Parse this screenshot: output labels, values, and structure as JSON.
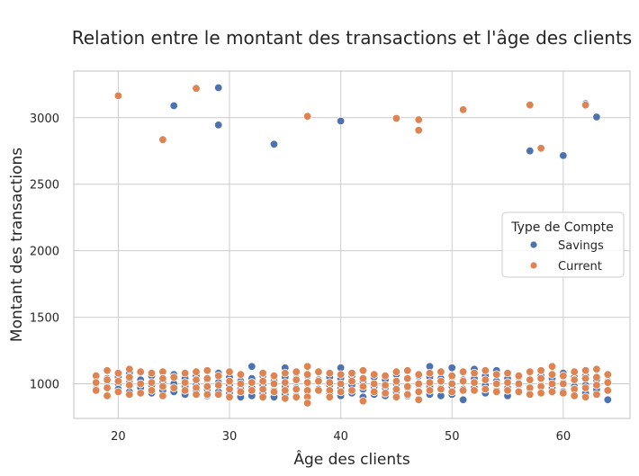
{
  "chart_data": {
    "type": "scatter",
    "title": "Relation entre le montant des transactions et l'âge des clients",
    "xlabel": "Âge des clients",
    "ylabel": "Montant des transactions",
    "xlim": [
      16,
      66
    ],
    "ylim": [
      740,
      3350
    ],
    "xticks": [
      20,
      30,
      40,
      50,
      60
    ],
    "yticks": [
      1000,
      1500,
      2000,
      2500,
      3000
    ],
    "grid": true,
    "legend": {
      "title": "Type de Compte",
      "placement": "center-right"
    },
    "series": [
      {
        "name": "Savings",
        "color": "#4c72b0",
        "points": [
          [
            18,
            1000
          ],
          [
            18,
            960
          ],
          [
            19,
            1040
          ],
          [
            19,
            980
          ],
          [
            20,
            1050
          ],
          [
            20,
            1000
          ],
          [
            20,
            960
          ],
          [
            21,
            1080
          ],
          [
            21,
            1010
          ],
          [
            21,
            940
          ],
          [
            22,
            1030
          ],
          [
            22,
            970
          ],
          [
            23,
            1060
          ],
          [
            23,
            990
          ],
          [
            23,
            930
          ],
          [
            24,
            1020
          ],
          [
            24,
            950
          ],
          [
            25,
            1070
          ],
          [
            25,
            1000
          ],
          [
            25,
            940
          ],
          [
            26,
            1040
          ],
          [
            26,
            980
          ],
          [
            26,
            920
          ],
          [
            27,
            1060
          ],
          [
            27,
            990
          ],
          [
            27,
            950
          ],
          [
            28,
            1030
          ],
          [
            28,
            960
          ],
          [
            28,
            910
          ],
          [
            29,
            1080
          ],
          [
            29,
            1010
          ],
          [
            29,
            940
          ],
          [
            30,
            1050
          ],
          [
            30,
            990
          ],
          [
            30,
            930
          ],
          [
            31,
            1020
          ],
          [
            31,
            960
          ],
          [
            31,
            900
          ],
          [
            32,
            1130
          ],
          [
            32,
            1040
          ],
          [
            32,
            970
          ],
          [
            32,
            910
          ],
          [
            33,
            1060
          ],
          [
            33,
            990
          ],
          [
            33,
            930
          ],
          [
            34,
            1020
          ],
          [
            34,
            950
          ],
          [
            34,
            900
          ],
          [
            35,
            1120
          ],
          [
            35,
            1050
          ],
          [
            35,
            980
          ],
          [
            35,
            920
          ],
          [
            36,
            1040
          ],
          [
            36,
            970
          ],
          [
            36,
            910
          ],
          [
            37,
            1060
          ],
          [
            37,
            1000
          ],
          [
            37,
            940
          ],
          [
            38,
            1030
          ],
          [
            38,
            960
          ],
          [
            39,
            1050
          ],
          [
            39,
            990
          ],
          [
            39,
            930
          ],
          [
            40,
            1120
          ],
          [
            40,
            1040
          ],
          [
            40,
            970
          ],
          [
            40,
            910
          ],
          [
            41,
            1060
          ],
          [
            41,
            990
          ],
          [
            41,
            930
          ],
          [
            42,
            1020
          ],
          [
            42,
            960
          ],
          [
            42,
            900
          ],
          [
            43,
            1050
          ],
          [
            43,
            980
          ],
          [
            43,
            920
          ],
          [
            44,
            1030
          ],
          [
            44,
            970
          ],
          [
            44,
            910
          ],
          [
            45,
            1070
          ],
          [
            45,
            1000
          ],
          [
            45,
            940
          ],
          [
            46,
            1040
          ],
          [
            46,
            970
          ],
          [
            46,
            910
          ],
          [
            47,
            1060
          ],
          [
            47,
            990
          ],
          [
            48,
            1130
          ],
          [
            48,
            1050
          ],
          [
            48,
            980
          ],
          [
            48,
            920
          ],
          [
            49,
            1040
          ],
          [
            49,
            970
          ],
          [
            49,
            910
          ],
          [
            50,
            1120
          ],
          [
            50,
            1050
          ],
          [
            50,
            980
          ],
          [
            50,
            920
          ],
          [
            51,
            1030
          ],
          [
            51,
            960
          ],
          [
            51,
            880
          ],
          [
            52,
            1110
          ],
          [
            52,
            1040
          ],
          [
            52,
            970
          ],
          [
            53,
            1060
          ],
          [
            53,
            990
          ],
          [
            53,
            930
          ],
          [
            54,
            1100
          ],
          [
            54,
            1020
          ],
          [
            54,
            950
          ],
          [
            55,
            1040
          ],
          [
            55,
            970
          ],
          [
            55,
            910
          ],
          [
            56,
            1050
          ],
          [
            56,
            990
          ],
          [
            57,
            1030
          ],
          [
            57,
            960
          ],
          [
            58,
            1060
          ],
          [
            58,
            990
          ],
          [
            58,
            930
          ],
          [
            59,
            1040
          ],
          [
            59,
            970
          ],
          [
            60,
            1080
          ],
          [
            60,
            1010
          ],
          [
            60,
            940
          ],
          [
            61,
            1050
          ],
          [
            61,
            980
          ],
          [
            62,
            1060
          ],
          [
            62,
            990
          ],
          [
            62,
            930
          ],
          [
            63,
            1030
          ],
          [
            63,
            960
          ],
          [
            64,
            1020
          ],
          [
            64,
            950
          ],
          [
            64,
            880
          ],
          [
            25,
            3090
          ],
          [
            29,
            3225
          ],
          [
            29,
            2945
          ],
          [
            34,
            2800
          ],
          [
            40,
            2975
          ],
          [
            57,
            2750
          ],
          [
            60,
            2715
          ],
          [
            62,
            3105
          ],
          [
            63,
            3005
          ]
        ]
      },
      {
        "name": "Current",
        "color": "#dd8452",
        "points": [
          [
            18,
            1060
          ],
          [
            18,
            1010
          ],
          [
            18,
            950
          ],
          [
            19,
            1100
          ],
          [
            19,
            1030
          ],
          [
            19,
            970
          ],
          [
            19,
            910
          ],
          [
            20,
            1080
          ],
          [
            20,
            1020
          ],
          [
            20,
            940
          ],
          [
            21,
            1110
          ],
          [
            21,
            1050
          ],
          [
            21,
            990
          ],
          [
            21,
            920
          ],
          [
            22,
            1090
          ],
          [
            22,
            1000
          ],
          [
            22,
            930
          ],
          [
            23,
            1080
          ],
          [
            23,
            1010
          ],
          [
            23,
            950
          ],
          [
            24,
            1090
          ],
          [
            24,
            1040
          ],
          [
            24,
            980
          ],
          [
            24,
            910
          ],
          [
            25,
            1050
          ],
          [
            25,
            970
          ],
          [
            26,
            1080
          ],
          [
            26,
            1010
          ],
          [
            26,
            950
          ],
          [
            27,
            1090
          ],
          [
            27,
            1030
          ],
          [
            27,
            970
          ],
          [
            27,
            920
          ],
          [
            28,
            1100
          ],
          [
            28,
            1040
          ],
          [
            28,
            980
          ],
          [
            28,
            920
          ],
          [
            29,
            1060
          ],
          [
            29,
            990
          ],
          [
            29,
            920
          ],
          [
            30,
            1090
          ],
          [
            30,
            1020
          ],
          [
            30,
            960
          ],
          [
            30,
            900
          ],
          [
            31,
            1070
          ],
          [
            31,
            1000
          ],
          [
            31,
            940
          ],
          [
            32,
            1010
          ],
          [
            32,
            950
          ],
          [
            33,
            1080
          ],
          [
            33,
            1020
          ],
          [
            33,
            960
          ],
          [
            33,
            900
          ],
          [
            34,
            1060
          ],
          [
            34,
            1000
          ],
          [
            34,
            940
          ],
          [
            35,
            1080
          ],
          [
            35,
            1010
          ],
          [
            35,
            950
          ],
          [
            35,
            890
          ],
          [
            36,
            1090
          ],
          [
            36,
            1030
          ],
          [
            36,
            960
          ],
          [
            36,
            900
          ],
          [
            37,
            1130
          ],
          [
            37,
            1070
          ],
          [
            37,
            1010
          ],
          [
            37,
            950
          ],
          [
            37,
            900
          ],
          [
            37,
            855
          ],
          [
            38,
            1090
          ],
          [
            38,
            1020
          ],
          [
            38,
            950
          ],
          [
            39,
            1080
          ],
          [
            39,
            1010
          ],
          [
            39,
            950
          ],
          [
            39,
            900
          ],
          [
            40,
            1070
          ],
          [
            40,
            1000
          ],
          [
            40,
            940
          ],
          [
            41,
            1080
          ],
          [
            41,
            1020
          ],
          [
            41,
            950
          ],
          [
            42,
            1100
          ],
          [
            42,
            1040
          ],
          [
            42,
            980
          ],
          [
            42,
            870
          ],
          [
            43,
            1070
          ],
          [
            43,
            1000
          ],
          [
            43,
            940
          ],
          [
            44,
            1060
          ],
          [
            44,
            990
          ],
          [
            44,
            930
          ],
          [
            45,
            1090
          ],
          [
            45,
            1020
          ],
          [
            45,
            960
          ],
          [
            45,
            900
          ],
          [
            46,
            1100
          ],
          [
            46,
            1040
          ],
          [
            46,
            980
          ],
          [
            46,
            920
          ],
          [
            47,
            1070
          ],
          [
            47,
            1000
          ],
          [
            47,
            940
          ],
          [
            47,
            880
          ],
          [
            48,
            1080
          ],
          [
            48,
            1010
          ],
          [
            48,
            950
          ],
          [
            49,
            1090
          ],
          [
            49,
            1020
          ],
          [
            49,
            960
          ],
          [
            50,
            1060
          ],
          [
            50,
            1000
          ],
          [
            50,
            940
          ],
          [
            51,
            1090
          ],
          [
            51,
            1020
          ],
          [
            51,
            950
          ],
          [
            52,
            1080
          ],
          [
            52,
            1010
          ],
          [
            52,
            950
          ],
          [
            53,
            1100
          ],
          [
            53,
            1030
          ],
          [
            53,
            960
          ],
          [
            54,
            1070
          ],
          [
            54,
            1000
          ],
          [
            54,
            940
          ],
          [
            55,
            1080
          ],
          [
            55,
            1010
          ],
          [
            55,
            950
          ],
          [
            56,
            1060
          ],
          [
            56,
            1000
          ],
          [
            56,
            940
          ],
          [
            57,
            1090
          ],
          [
            57,
            1030
          ],
          [
            57,
            970
          ],
          [
            57,
            920
          ],
          [
            58,
            1100
          ],
          [
            58,
            1040
          ],
          [
            58,
            980
          ],
          [
            58,
            930
          ],
          [
            59,
            1130
          ],
          [
            59,
            1070
          ],
          [
            59,
            1000
          ],
          [
            59,
            940
          ],
          [
            60,
            1060
          ],
          [
            60,
            1000
          ],
          [
            60,
            930
          ],
          [
            61,
            1090
          ],
          [
            61,
            1030
          ],
          [
            61,
            960
          ],
          [
            61,
            910
          ],
          [
            62,
            1100
          ],
          [
            62,
            1040
          ],
          [
            62,
            970
          ],
          [
            62,
            900
          ],
          [
            63,
            1110
          ],
          [
            63,
            1050
          ],
          [
            63,
            990
          ],
          [
            63,
            920
          ],
          [
            64,
            1070
          ],
          [
            64,
            1010
          ],
          [
            64,
            950
          ],
          [
            20,
            3165
          ],
          [
            24,
            2835
          ],
          [
            27,
            3220
          ],
          [
            37,
            3010
          ],
          [
            45,
            2995
          ],
          [
            47,
            2985
          ],
          [
            47,
            2905
          ],
          [
            51,
            3060
          ],
          [
            57,
            3095
          ],
          [
            58,
            2770
          ],
          [
            62,
            3095
          ]
        ]
      }
    ]
  }
}
